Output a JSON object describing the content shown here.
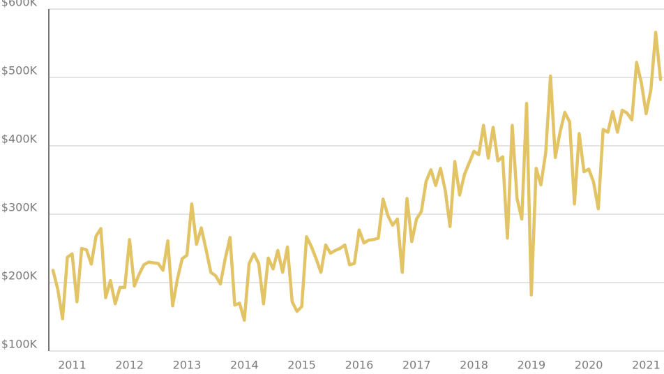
{
  "chart_data": {
    "type": "line",
    "categories": [
      null,
      null,
      null,
      null,
      "2011",
      null,
      null,
      null,
      null,
      null,
      null,
      null,
      null,
      null,
      null,
      null,
      "2012",
      null,
      null,
      null,
      null,
      null,
      null,
      null,
      null,
      null,
      null,
      null,
      "2013",
      null,
      null,
      null,
      null,
      null,
      null,
      null,
      null,
      null,
      null,
      null,
      "2014",
      null,
      null,
      null,
      null,
      null,
      null,
      null,
      null,
      null,
      null,
      null,
      "2015",
      null,
      null,
      null,
      null,
      null,
      null,
      null,
      null,
      null,
      null,
      null,
      "2016",
      null,
      null,
      null,
      null,
      null,
      null,
      null,
      null,
      null,
      null,
      null,
      "2017",
      null,
      null,
      null,
      null,
      null,
      null,
      null,
      null,
      null,
      null,
      null,
      "2018",
      null,
      null,
      null,
      null,
      null,
      null,
      null,
      null,
      null,
      null,
      null,
      "2019",
      null,
      null,
      null,
      null,
      null,
      null,
      null,
      null,
      null,
      null,
      null,
      "2020",
      null,
      null,
      null,
      null,
      null,
      null,
      null,
      null,
      null,
      null,
      null,
      "2021",
      null,
      null,
      null
    ],
    "values": [
      218000,
      190000,
      147000,
      237000,
      242000,
      172000,
      250000,
      248000,
      227000,
      268000,
      279000,
      178000,
      203000,
      169000,
      193000,
      193000,
      263000,
      195000,
      212000,
      226000,
      230000,
      229000,
      228000,
      218000,
      261000,
      166000,
      205000,
      235000,
      240000,
      315000,
      256000,
      280000,
      248000,
      215000,
      210000,
      198000,
      235000,
      266000,
      167000,
      170000,
      145000,
      228000,
      242000,
      228000,
      169000,
      236000,
      220000,
      247000,
      215000,
      252000,
      172000,
      158000,
      165000,
      267000,
      253000,
      235000,
      215000,
      255000,
      243000,
      247000,
      250000,
      255000,
      226000,
      228000,
      277000,
      258000,
      262000,
      263000,
      265000,
      322000,
      298000,
      284000,
      293000,
      215000,
      323000,
      260000,
      293000,
      304000,
      348000,
      365000,
      342000,
      367000,
      335000,
      282000,
      377000,
      328000,
      358000,
      375000,
      392000,
      387000,
      430000,
      382000,
      427000,
      378000,
      384000,
      265000,
      430000,
      323000,
      293000,
      462000,
      182000,
      367000,
      343000,
      390000,
      502000,
      383000,
      420000,
      449000,
      435000,
      315000,
      418000,
      362000,
      366000,
      347000,
      308000,
      424000,
      420000,
      450000,
      420000,
      452000,
      448000,
      438000,
      522000,
      492000,
      447000,
      483000,
      566000,
      497000
    ],
    "color": "#e2c466",
    "ylim": [
      100000,
      600000
    ],
    "yticks": [
      {
        "value": 100000,
        "label": "$100K"
      },
      {
        "value": 200000,
        "label": "$200K"
      },
      {
        "value": 300000,
        "label": "$300K"
      },
      {
        "value": 400000,
        "label": "$400K"
      },
      {
        "value": 500000,
        "label": "$500K"
      },
      {
        "value": 600000,
        "label": "$600K"
      }
    ],
    "grid": true
  }
}
